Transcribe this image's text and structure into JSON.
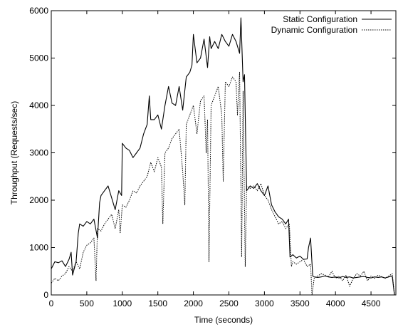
{
  "chart_data": {
    "type": "line",
    "xlabel": "Time (seconds)",
    "ylabel": "Throughput (Requests/sec)",
    "xlim": [
      0,
      4850
    ],
    "ylim": [
      0,
      6000
    ],
    "x_ticks": [
      0,
      500,
      1000,
      1500,
      2000,
      2500,
      3000,
      3500,
      4000,
      4500
    ],
    "y_ticks": [
      0,
      1000,
      2000,
      3000,
      4000,
      5000,
      6000
    ],
    "grid": false,
    "legend_position": "top-right",
    "series": [
      {
        "name": "Static Configuration",
        "style": "solid",
        "color": "#000000",
        "x": [
          0,
          50,
          100,
          150,
          200,
          250,
          280,
          300,
          350,
          380,
          400,
          450,
          500,
          550,
          600,
          650,
          680,
          700,
          750,
          800,
          850,
          900,
          950,
          990,
          1000,
          1050,
          1100,
          1150,
          1200,
          1250,
          1300,
          1350,
          1380,
          1400,
          1450,
          1500,
          1550,
          1600,
          1650,
          1700,
          1750,
          1800,
          1850,
          1900,
          1950,
          1980,
          2000,
          2050,
          2100,
          2150,
          2200,
          2230,
          2250,
          2300,
          2350,
          2400,
          2450,
          2500,
          2550,
          2600,
          2650,
          2670,
          2700,
          2720,
          2750,
          2800,
          2850,
          2900,
          2950,
          3000,
          3050,
          3100,
          3150,
          3200,
          3250,
          3300,
          3340,
          3360,
          3400,
          3450,
          3500,
          3550,
          3600,
          3620,
          3650,
          3680,
          3700,
          3750,
          3800,
          3850,
          3900,
          3950,
          4000,
          4050,
          4100,
          4150,
          4200,
          4250,
          4300,
          4350,
          4400,
          4450,
          4500,
          4550,
          4600,
          4650,
          4700,
          4750,
          4790,
          4800,
          4830
        ],
        "y": [
          550,
          700,
          680,
          720,
          600,
          750,
          900,
          420,
          700,
          1300,
          1500,
          1450,
          1550,
          1500,
          1600,
          1200,
          1950,
          2100,
          2200,
          2300,
          2050,
          1800,
          2200,
          2100,
          3200,
          3100,
          3050,
          2900,
          3000,
          3100,
          3400,
          3600,
          4200,
          3700,
          3700,
          3800,
          3500,
          4000,
          4400,
          4050,
          4000,
          4400,
          3900,
          4600,
          4700,
          4850,
          5500,
          4900,
          5000,
          5400,
          4800,
          5450,
          5200,
          5350,
          5200,
          5500,
          5350,
          5250,
          5500,
          5350,
          5100,
          5850,
          4500,
          4650,
          2200,
          2300,
          2250,
          2350,
          2200,
          2100,
          2300,
          1900,
          1750,
          1650,
          1600,
          1500,
          1600,
          800,
          850,
          780,
          820,
          750,
          760,
          1000,
          1200,
          400,
          380,
          370,
          380,
          400,
          380,
          370,
          380,
          360,
          390,
          370,
          380,
          360,
          370,
          380,
          390,
          370,
          360,
          380,
          370,
          380,
          360,
          380,
          400,
          380,
          0
        ]
      },
      {
        "name": "Dynamic Configuration",
        "style": "dotted",
        "color": "#000000",
        "x": [
          0,
          50,
          100,
          150,
          200,
          250,
          300,
          350,
          400,
          450,
          500,
          550,
          600,
          630,
          650,
          700,
          750,
          800,
          850,
          900,
          950,
          970,
          1000,
          1050,
          1100,
          1150,
          1200,
          1250,
          1300,
          1350,
          1400,
          1450,
          1500,
          1550,
          1570,
          1600,
          1650,
          1700,
          1750,
          1800,
          1850,
          1880,
          1900,
          1950,
          2000,
          2050,
          2100,
          2150,
          2180,
          2200,
          2220,
          2250,
          2300,
          2350,
          2400,
          2420,
          2450,
          2500,
          2550,
          2600,
          2620,
          2650,
          2680,
          2700,
          2730,
          2750,
          2800,
          2850,
          2900,
          2950,
          3000,
          3050,
          3100,
          3150,
          3200,
          3250,
          3300,
          3350,
          3380,
          3400,
          3450,
          3500,
          3550,
          3600,
          3650,
          3670,
          3700,
          3750,
          3800,
          3850,
          3900,
          3950,
          4000,
          4050,
          4100,
          4150,
          4200,
          4250,
          4300,
          4350,
          4400,
          4450,
          4500,
          4550,
          4600,
          4650,
          4700,
          4750,
          4800,
          4830
        ],
        "y": [
          250,
          350,
          300,
          400,
          450,
          600,
          500,
          700,
          550,
          900,
          1050,
          1100,
          1200,
          300,
          1400,
          1350,
          1500,
          1600,
          1700,
          1400,
          1800,
          1300,
          1900,
          1850,
          2000,
          2200,
          2150,
          2300,
          2400,
          2500,
          2800,
          2600,
          2900,
          2700,
          1500,
          3000,
          3100,
          3300,
          3400,
          3500,
          2600,
          1900,
          3600,
          3800,
          4000,
          3400,
          4100,
          4200,
          3000,
          3700,
          700,
          4000,
          4200,
          4400,
          3800,
          2400,
          4500,
          4400,
          4600,
          4500,
          3800,
          4700,
          800,
          4300,
          600,
          2300,
          2250,
          2300,
          2200,
          2350,
          2100,
          2000,
          1800,
          1650,
          1500,
          1550,
          1400,
          1500,
          600,
          700,
          650,
          700,
          750,
          600,
          650,
          0,
          350,
          400,
          450,
          420,
          380,
          500,
          350,
          400,
          300,
          420,
          180,
          350,
          450,
          400,
          500,
          300,
          400,
          350,
          420,
          380,
          350,
          400,
          450,
          0
        ]
      }
    ]
  }
}
